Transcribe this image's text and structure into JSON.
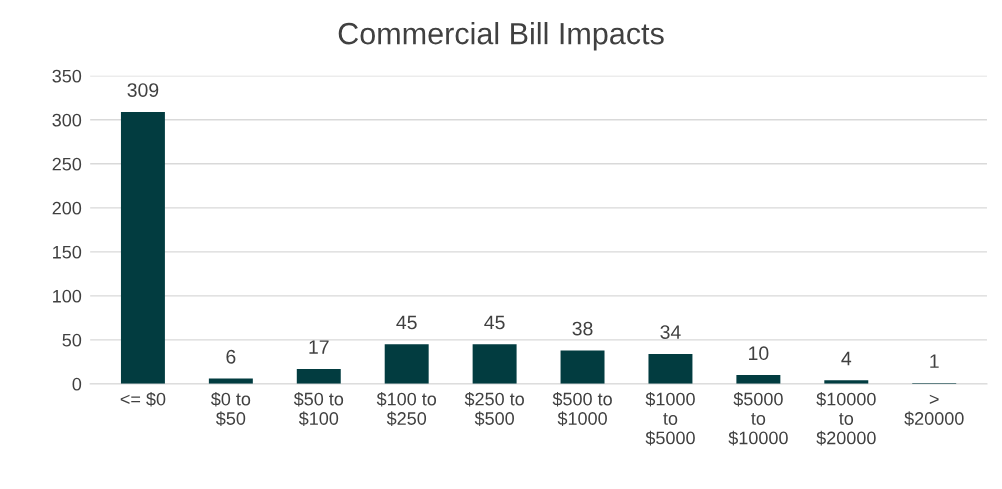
{
  "chart_data": {
    "type": "bar",
    "title": "Commercial Bill Impacts",
    "categories": [
      "<= $0",
      "$0 to\n$50",
      "$50 to\n$100",
      "$100 to\n$250",
      "$250 to\n$500",
      "$500 to\n$1000",
      "$1000\nto\n$5000",
      "$5000\nto\n$10000",
      "$10000\nto\n$20000",
      ">\n$20000"
    ],
    "values": [
      309,
      6,
      17,
      45,
      45,
      38,
      34,
      10,
      4,
      1
    ],
    "color": "#023c40",
    "ylim": [
      0,
      350
    ],
    "yticks": [
      0,
      50,
      100,
      150,
      200,
      250,
      300,
      350
    ],
    "grid": "y",
    "data_labels": true
  }
}
